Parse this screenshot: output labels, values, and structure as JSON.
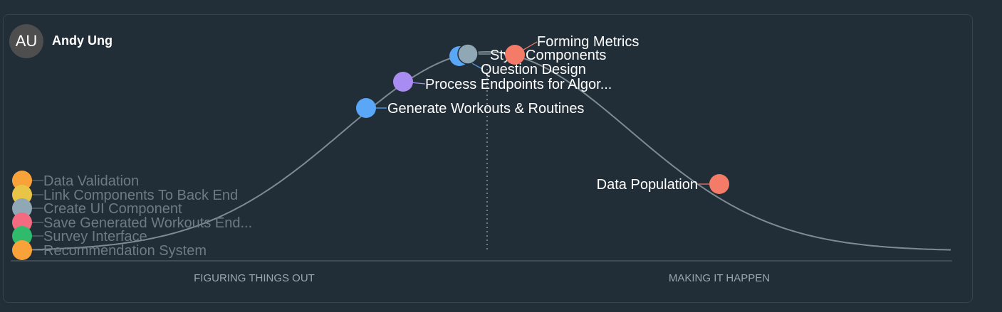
{
  "user": {
    "initials": "AU",
    "name": "Andy Ung"
  },
  "hill_chart": {
    "phases": {
      "left": "FIGURING THINGS OUT",
      "right": "MAKING IT HAPPEN"
    },
    "colors": {
      "curve": "#7e8b92",
      "baseline": "#3d4b54",
      "divider": "#8a969d"
    },
    "stacked_items": [
      {
        "label": "Data Validation",
        "color": "#f9a23a"
      },
      {
        "label": "Link Components To Back End",
        "color": "#e8c547"
      },
      {
        "label": "Create UI Component",
        "color": "#90a8b6"
      },
      {
        "label": "Save Generated Workouts End...",
        "color": "#f26b80"
      },
      {
        "label": "Survey Interface",
        "color": "#2fba6c"
      },
      {
        "label": "Recommendation System",
        "color": "#f9a23a"
      }
    ],
    "items": [
      {
        "label": "Generate Workouts & Routines",
        "color": "#5aa6f7",
        "progress_pct": 37
      },
      {
        "label": "Process Endpoints for Algor...",
        "color": "#a98cf2",
        "progress_pct": 41
      },
      {
        "label": "Question Design",
        "color": "#5aa6f7",
        "progress_pct": 47
      },
      {
        "label": "Style Components",
        "color": "#90a8b6",
        "progress_pct": 48
      },
      {
        "label": "Forming Metrics",
        "color": "#f47b67",
        "progress_pct": 53
      },
      {
        "label": "Data Population",
        "color": "#f47b67",
        "progress_pct": 75
      }
    ]
  }
}
